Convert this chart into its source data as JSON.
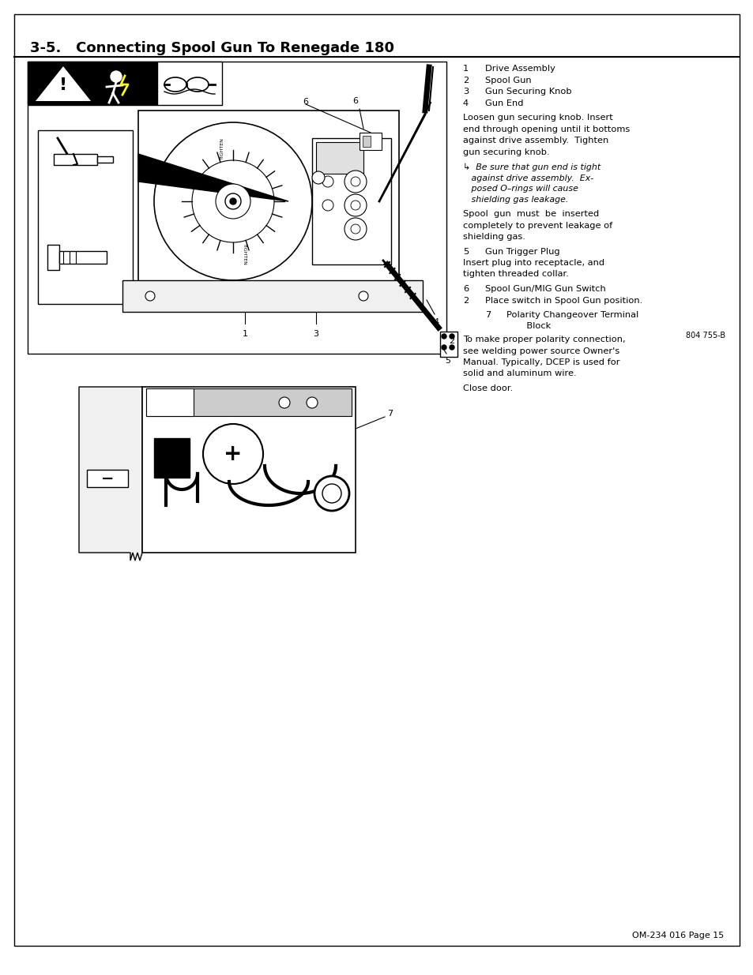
{
  "page_bg": "#ffffff",
  "title": "3-5.   Connecting Spool Gun To Renegade 180",
  "title_fontsize": 13,
  "footer_text": "OM-234 016 Page 15",
  "ref_text": "804 755-B",
  "text_items_1_4": [
    [
      "1",
      "Drive Assembly"
    ],
    [
      "2",
      "Spool Gun"
    ],
    [
      "3",
      "Gun Securing Knob"
    ],
    [
      "4",
      "Gun End"
    ]
  ],
  "para1_lines": [
    "Loosen gun securing knob. Insert",
    "end through opening until it bottoms",
    "against drive assembly.  Tighten",
    "gun securing knob."
  ],
  "note_lines": [
    "↳  Be sure that gun end is tight",
    "   against drive assembly.  Ex-",
    "   posed O–rings will cause",
    "   shielding gas leakage."
  ],
  "para2_lines": [
    "Spool  gun  must  be  inserted",
    "completely to prevent leakage of",
    "shielding gas."
  ],
  "item5": [
    "5",
    "Gun Trigger Plug"
  ],
  "para3_lines": [
    "Insert plug into receptacle, and",
    "tighten threaded collar."
  ],
  "item6": [
    "6",
    "Spool Gun/MIG Gun Switch"
  ],
  "item2_place": [
    "2",
    "Place switch in Spool Gun position."
  ],
  "item7": [
    "7",
    "Polarity Changeover Terminal",
    "       Block"
  ],
  "para5_lines": [
    "To make proper polarity connection,",
    "see welding power source Owner's",
    "Manual. Typically, DCEP is used for",
    "solid and aluminum wire."
  ],
  "para6": "Close door."
}
